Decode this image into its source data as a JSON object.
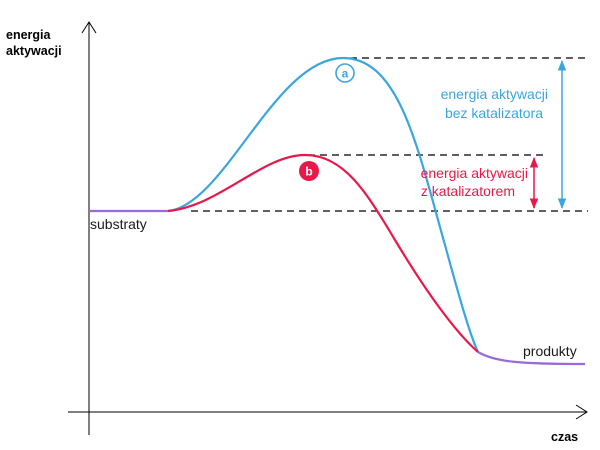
{
  "axes": {
    "y_label_line1": "energia",
    "y_label_line2": "aktywacji",
    "x_label": "czas"
  },
  "curves": {
    "a": {
      "badge": "a",
      "color": "#3aa6df"
    },
    "b": {
      "badge": "b",
      "color": "#e8194a"
    }
  },
  "baseline_colors": {
    "flat": "#9a6bd8"
  },
  "labels": {
    "substrates": "substraty",
    "products": "produkty",
    "uncatalyzed_line1": "energia aktywacji",
    "uncatalyzed_line2": "bez katalizatora",
    "catalyzed_line1": "energia aktywacji",
    "catalyzed_line2": "z katalizatorem"
  },
  "colors": {
    "axis": "#000000",
    "dashes": "#000000",
    "text": "#1a1a1a"
  }
}
